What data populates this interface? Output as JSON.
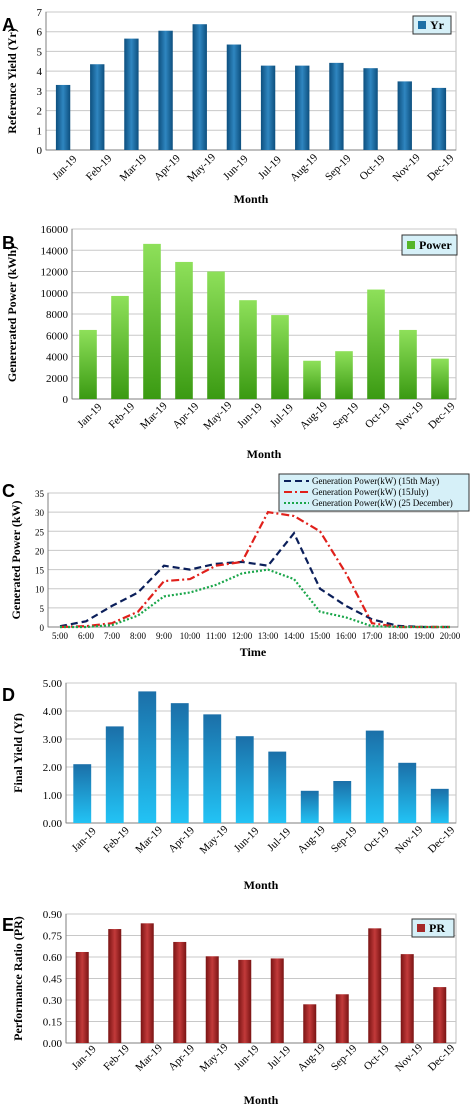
{
  "chart_data": [
    {
      "panel": "A",
      "type": "bar",
      "categories": [
        "Jan-19",
        "Feb-19",
        "Mar-19",
        "Apr-19",
        "May-19",
        "Jun-19",
        "Jul-19",
        "Aug-19",
        "Sep-19",
        "Oct-19",
        "Nov-19",
        "Dec-19"
      ],
      "series": [
        {
          "name": "Yr",
          "values": [
            3.3,
            4.35,
            5.65,
            6.05,
            6.38,
            5.35,
            4.28,
            4.28,
            4.42,
            4.15,
            3.48,
            3.15
          ]
        }
      ],
      "xlabel": "Month",
      "ylabel": "Reference Yield (Yr)",
      "ylim": [
        0,
        7
      ],
      "yticks": [
        "0",
        "1",
        "2",
        "3",
        "4",
        "5",
        "6",
        "7"
      ],
      "grid": true,
      "legend": "top-right",
      "color": "#1d6fa5"
    },
    {
      "panel": "B",
      "type": "bar",
      "categories": [
        "Jan-19",
        "Feb-19",
        "Mar-19",
        "Apr-19",
        "May-19",
        "Jun-19",
        "Jul-19",
        "Aug-19",
        "Sep-19",
        "Oct-19",
        "Nov-19",
        "Dec-19"
      ],
      "series": [
        {
          "name": "Power",
          "values": [
            6500,
            9700,
            14600,
            12900,
            12000,
            9300,
            7900,
            3600,
            4500,
            10300,
            6500,
            3800
          ]
        }
      ],
      "xlabel": "Month",
      "ylabel": "Genererated Power (kWh)",
      "ylim": [
        0,
        16000
      ],
      "yticks": [
        "0",
        "2000",
        "4000",
        "6000",
        "8000",
        "10000",
        "12000",
        "14000",
        "16000"
      ],
      "grid": true,
      "legend": "top-right",
      "color": "#5fbf2a"
    },
    {
      "panel": "C",
      "type": "line",
      "x": [
        "5:00",
        "6:00",
        "7:00",
        "8:00",
        "9:00",
        "10:00",
        "11:00",
        "12:00",
        "13:00",
        "14:00",
        "15:00",
        "16:00",
        "17:00",
        "18:00",
        "19:00",
        "20:00"
      ],
      "series": [
        {
          "name": "Generation Power(kW) (15th May)",
          "values": [
            0.2,
            1.5,
            5.5,
            9,
            16,
            15,
            16.5,
            17,
            16,
            24.5,
            10,
            5.5,
            2,
            0.3,
            0,
            0
          ],
          "color": "#0b1f5a",
          "dash": "dashed"
        },
        {
          "name": "Generation Power(kW) (15July)",
          "values": [
            0,
            0.2,
            1,
            4,
            12,
            12.5,
            16,
            17,
            30,
            29,
            25,
            14,
            1,
            0,
            0,
            0
          ],
          "color": "#e0201b",
          "dash": "dashdot"
        },
        {
          "name": "Generation Power(kW) (25 December)",
          "values": [
            0,
            0,
            0.5,
            3,
            8,
            9,
            11,
            14,
            15,
            12.5,
            4,
            2.5,
            0.2,
            0,
            0,
            0
          ],
          "color": "#1aa64a",
          "dash": "dotted"
        }
      ],
      "xlabel": "Time",
      "ylabel": "Generated Power (kW)",
      "ylim": [
        0,
        35
      ],
      "yticks": [
        "0",
        "5",
        "10",
        "15",
        "20",
        "25",
        "30",
        "35"
      ],
      "grid": true,
      "legend": "top-right"
    },
    {
      "panel": "D",
      "type": "bar",
      "categories": [
        "Jan-19",
        "Feb-19",
        "Mar-19",
        "Apr-19",
        "May-19",
        "Jun-19",
        "Jul-19",
        "Aug-19",
        "Sep-19",
        "Oct-19",
        "Nov-19",
        "Dec-19"
      ],
      "series": [
        {
          "values": [
            2.1,
            3.45,
            4.7,
            4.28,
            3.88,
            3.1,
            2.55,
            1.15,
            1.5,
            3.3,
            2.15,
            1.22
          ]
        }
      ],
      "xlabel": "Month",
      "ylabel": "Final Yield (Yf)",
      "ylim": [
        0,
        5
      ],
      "yticks": [
        "0.00",
        "1.00",
        "2.00",
        "3.00",
        "4.00",
        "5.00"
      ],
      "grid": true,
      "color": "#0aa8e0"
    },
    {
      "panel": "E",
      "type": "bar",
      "categories": [
        "Jan-19",
        "Feb-19",
        "Mar-19",
        "Apr-19",
        "May-19",
        "Jun-19",
        "Jul-19",
        "Aug-19",
        "Sep-19",
        "Oct-19",
        "Nov-19",
        "Dec-19"
      ],
      "series": [
        {
          "name": "PR",
          "values": [
            0.635,
            0.795,
            0.835,
            0.705,
            0.605,
            0.58,
            0.59,
            0.27,
            0.34,
            0.8,
            0.62,
            0.39
          ]
        }
      ],
      "xlabel": "Month",
      "ylabel": "Performance Ratio (PR)",
      "ylim": [
        0,
        0.9
      ],
      "yticks": [
        "0.00",
        "0.15",
        "0.30",
        "0.45",
        "0.60",
        "0.75",
        "0.90"
      ],
      "grid": true,
      "legend": "top-right",
      "color": "#a52a2a"
    }
  ]
}
